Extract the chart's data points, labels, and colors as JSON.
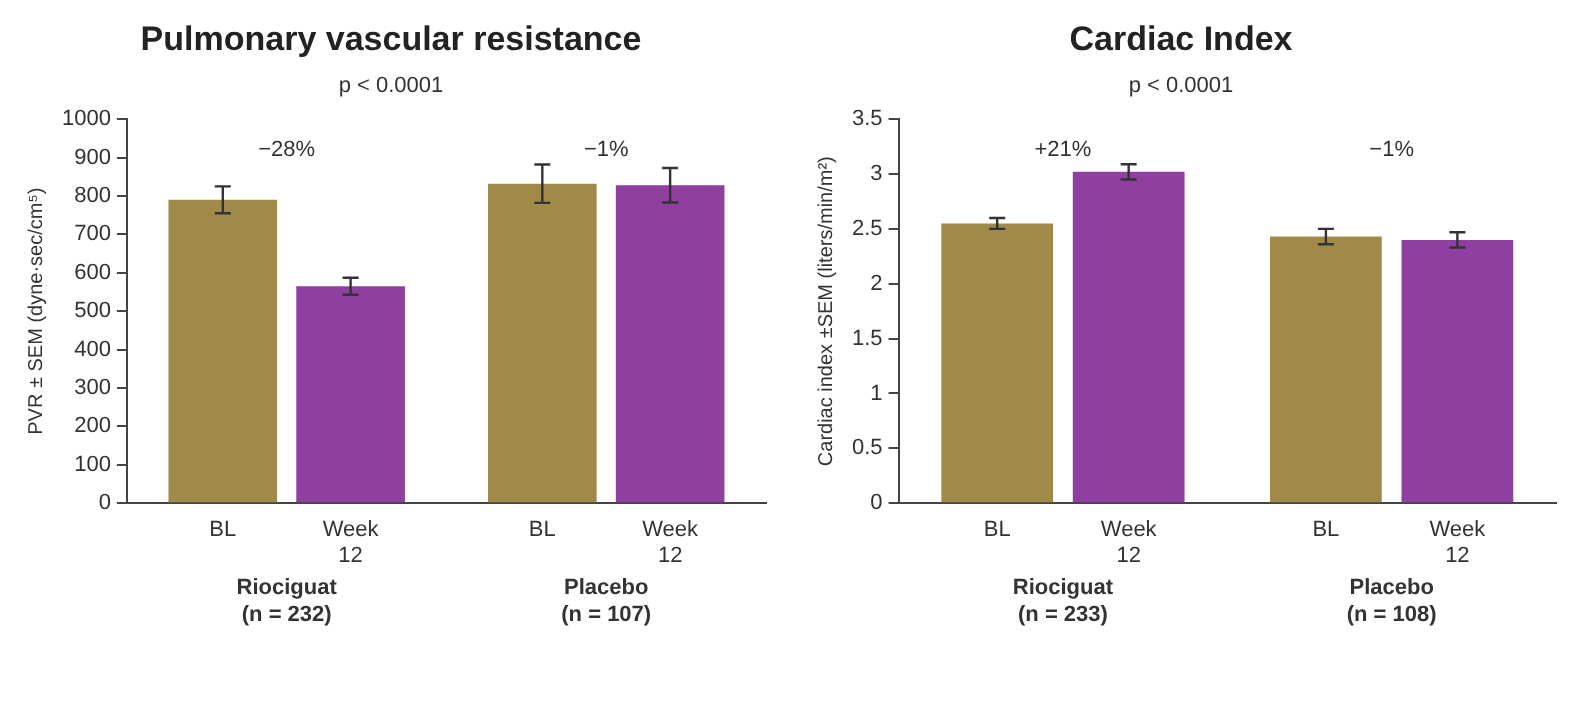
{
  "chart_data": [
    {
      "type": "bar",
      "title": "Pulmonary vascular resistance",
      "ylabel": "PVR ± SEM (dyne·sec/cm⁵)",
      "categories": [
        "Riociguat (n = 232)",
        "Placebo (n = 107)"
      ],
      "series": [
        {
          "name": "BL",
          "color": "#a08a4a",
          "values": [
            790,
            832
          ],
          "errors": [
            35,
            50
          ]
        },
        {
          "name": "Week 12",
          "color": "#8e3fa0",
          "values": [
            565,
            828
          ],
          "errors": [
            22,
            45
          ]
        }
      ],
      "ylim": [
        0,
        1000
      ],
      "yticks": [
        0,
        100,
        200,
        300,
        400,
        500,
        600,
        700,
        800,
        900,
        1000
      ],
      "grid": false,
      "legend": false,
      "annotations": [
        "p < 0.0001",
        "−28%",
        "−1%"
      ]
    },
    {
      "type": "bar",
      "title": "Cardiac Index",
      "ylabel": "Cardiac index ±SEM (liters/min/m²)",
      "categories": [
        "Riociguat (n = 233)",
        "Placebo (n = 108)"
      ],
      "series": [
        {
          "name": "BL",
          "color": "#a08a4a",
          "values": [
            2.55,
            2.43
          ],
          "errors": [
            0.05,
            0.07
          ]
        },
        {
          "name": "Week 12",
          "color": "#8e3fa0",
          "values": [
            3.02,
            2.4
          ],
          "errors": [
            0.07,
            0.07
          ]
        }
      ],
      "ylim": [
        0,
        3.5
      ],
      "yticks": [
        0,
        0.5,
        1,
        1.5,
        2,
        2.5,
        3,
        3.5
      ],
      "grid": false,
      "legend": false,
      "annotations": [
        "p < 0.0001",
        "+21%",
        "−1%"
      ]
    }
  ]
}
